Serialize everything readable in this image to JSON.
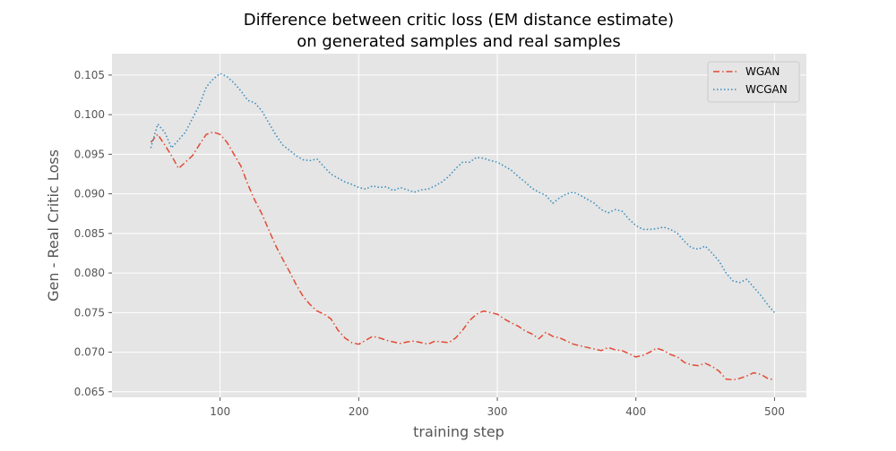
{
  "chart_data": {
    "type": "line",
    "title_lines": [
      "Difference between critic loss (EM distance estimate)",
      "on generated samples and real samples"
    ],
    "xlabel": "training step",
    "ylabel": "Gen - Real Critic Loss",
    "xlim": [
      22,
      523
    ],
    "ylim": [
      0.0643,
      0.1077
    ],
    "xticks": [
      100,
      200,
      300,
      400,
      500
    ],
    "xtick_labels": [
      "100",
      "200",
      "300",
      "400",
      "500"
    ],
    "yticks": [
      0.065,
      0.07,
      0.075,
      0.08,
      0.085,
      0.09,
      0.095,
      0.1,
      0.105
    ],
    "ytick_labels": [
      "0.065",
      "0.070",
      "0.075",
      "0.080",
      "0.085",
      "0.090",
      "0.095",
      "0.100",
      "0.105"
    ],
    "grid": true,
    "legend_position": "top-right",
    "series": [
      {
        "name": "WGAN",
        "color": "#E24A33",
        "style": "dashdot",
        "x": [
          50,
          55,
          60,
          65,
          70,
          75,
          80,
          85,
          90,
          95,
          100,
          105,
          110,
          115,
          120,
          125,
          130,
          135,
          140,
          145,
          150,
          155,
          160,
          165,
          170,
          175,
          180,
          185,
          190,
          195,
          200,
          205,
          210,
          215,
          220,
          225,
          230,
          235,
          240,
          245,
          250,
          255,
          260,
          265,
          270,
          275,
          280,
          285,
          290,
          295,
          300,
          305,
          310,
          315,
          320,
          325,
          330,
          335,
          340,
          345,
          350,
          355,
          360,
          365,
          370,
          375,
          380,
          385,
          390,
          395,
          400,
          405,
          410,
          415,
          420,
          425,
          430,
          435,
          440,
          445,
          450,
          455,
          460,
          465,
          470,
          475,
          480,
          485,
          490,
          495,
          500
        ],
        "y": [
          0.0965,
          0.0975,
          0.0962,
          0.0948,
          0.0932,
          0.094,
          0.0948,
          0.0962,
          0.0975,
          0.0978,
          0.0975,
          0.0965,
          0.095,
          0.0935,
          0.0912,
          0.0892,
          0.0875,
          0.0855,
          0.0835,
          0.0818,
          0.0802,
          0.0785,
          0.077,
          0.076,
          0.0752,
          0.0748,
          0.0742,
          0.0728,
          0.0718,
          0.0712,
          0.071,
          0.0715,
          0.072,
          0.0718,
          0.0715,
          0.0713,
          0.0711,
          0.0713,
          0.0714,
          0.0712,
          0.071,
          0.0714,
          0.0713,
          0.0712,
          0.0718,
          0.0728,
          0.074,
          0.0748,
          0.0752,
          0.075,
          0.0748,
          0.0742,
          0.0737,
          0.0733,
          0.0727,
          0.0723,
          0.0717,
          0.0725,
          0.072,
          0.0718,
          0.0714,
          0.071,
          0.0708,
          0.0706,
          0.0704,
          0.0702,
          0.0706,
          0.0703,
          0.0702,
          0.0698,
          0.0694,
          0.0696,
          0.07,
          0.0705,
          0.0702,
          0.0697,
          0.0694,
          0.0687,
          0.0684,
          0.0683,
          0.0686,
          0.0682,
          0.0676,
          0.0666,
          0.0665,
          0.0667,
          0.067,
          0.0674,
          0.0672,
          0.0667,
          0.0665
        ]
      },
      {
        "name": "WCGAN",
        "color": "#348ABD",
        "style": "dotted",
        "x": [
          50,
          55,
          60,
          65,
          70,
          75,
          80,
          85,
          90,
          95,
          100,
          105,
          110,
          115,
          120,
          125,
          130,
          135,
          140,
          145,
          150,
          155,
          160,
          165,
          170,
          175,
          180,
          185,
          190,
          195,
          200,
          205,
          210,
          215,
          220,
          225,
          230,
          235,
          240,
          245,
          250,
          255,
          260,
          265,
          270,
          275,
          280,
          285,
          290,
          295,
          300,
          305,
          310,
          315,
          320,
          325,
          330,
          335,
          340,
          345,
          350,
          355,
          360,
          365,
          370,
          375,
          380,
          385,
          390,
          395,
          400,
          405,
          410,
          415,
          420,
          425,
          430,
          435,
          440,
          445,
          450,
          455,
          460,
          465,
          470,
          475,
          480,
          485,
          490,
          495,
          500
        ],
        "y": [
          0.0958,
          0.0988,
          0.0978,
          0.0958,
          0.0968,
          0.0978,
          0.0995,
          0.1012,
          0.1035,
          0.1045,
          0.1052,
          0.1048,
          0.104,
          0.103,
          0.1018,
          0.1015,
          0.1005,
          0.099,
          0.0975,
          0.0962,
          0.0955,
          0.0948,
          0.0943,
          0.0942,
          0.0944,
          0.0934,
          0.0925,
          0.092,
          0.0915,
          0.0912,
          0.0908,
          0.0906,
          0.091,
          0.0908,
          0.0909,
          0.0904,
          0.0908,
          0.0905,
          0.0902,
          0.0905,
          0.0906,
          0.091,
          0.0915,
          0.0922,
          0.0932,
          0.094,
          0.094,
          0.0946,
          0.0945,
          0.0942,
          0.094,
          0.0935,
          0.093,
          0.0922,
          0.0915,
          0.0907,
          0.0902,
          0.0898,
          0.0888,
          0.0895,
          0.09,
          0.0902,
          0.0898,
          0.0893,
          0.0888,
          0.088,
          0.0876,
          0.088,
          0.0878,
          0.0868,
          0.086,
          0.0855,
          0.0855,
          0.0856,
          0.0858,
          0.0855,
          0.085,
          0.084,
          0.0832,
          0.083,
          0.0834,
          0.0825,
          0.0815,
          0.08,
          0.079,
          0.0788,
          0.0792,
          0.0782,
          0.0772,
          0.076,
          0.075
        ]
      }
    ]
  }
}
